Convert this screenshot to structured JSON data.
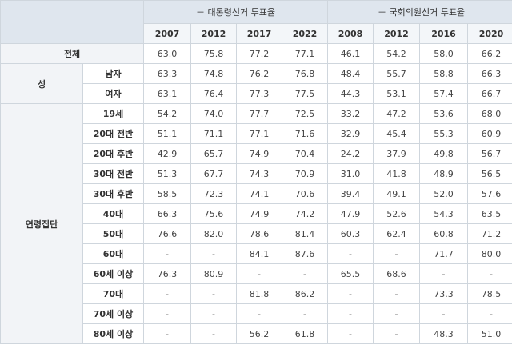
{
  "groups": [
    {
      "label": "－ 대통령선거 투표율"
    },
    {
      "label": "－ 국회의원선거 투표율"
    }
  ],
  "years": [
    "2007",
    "2012",
    "2017",
    "2022",
    "2008",
    "2012",
    "2016",
    "2020"
  ],
  "rows": [
    {
      "cat": "전체",
      "sub": "",
      "values": [
        "63.0",
        "75.8",
        "77.2",
        "77.1",
        "46.1",
        "54.2",
        "58.0",
        "66.2"
      ]
    },
    {
      "cat": "성",
      "sub": "남자",
      "values": [
        "63.3",
        "74.8",
        "76.2",
        "76.8",
        "48.4",
        "55.7",
        "58.8",
        "66.3"
      ]
    },
    {
      "cat": "",
      "sub": "여자",
      "values": [
        "63.1",
        "76.4",
        "77.3",
        "77.5",
        "44.3",
        "53.1",
        "57.4",
        "66.7"
      ]
    },
    {
      "cat": "연령집단",
      "sub": "19세",
      "values": [
        "54.2",
        "74.0",
        "77.7",
        "72.5",
        "33.2",
        "47.2",
        "53.6",
        "68.0"
      ]
    },
    {
      "cat": "",
      "sub": "20대 전반",
      "values": [
        "51.1",
        "71.1",
        "77.1",
        "71.6",
        "32.9",
        "45.4",
        "55.3",
        "60.9"
      ]
    },
    {
      "cat": "",
      "sub": "20대 후반",
      "values": [
        "42.9",
        "65.7",
        "74.9",
        "70.4",
        "24.2",
        "37.9",
        "49.8",
        "56.7"
      ]
    },
    {
      "cat": "",
      "sub": "30대 전반",
      "values": [
        "51.3",
        "67.7",
        "74.3",
        "70.9",
        "31.0",
        "41.8",
        "48.9",
        "56.5"
      ]
    },
    {
      "cat": "",
      "sub": "30대 후반",
      "values": [
        "58.5",
        "72.3",
        "74.1",
        "70.6",
        "39.4",
        "49.1",
        "52.0",
        "57.6"
      ]
    },
    {
      "cat": "",
      "sub": "40대",
      "values": [
        "66.3",
        "75.6",
        "74.9",
        "74.2",
        "47.9",
        "52.6",
        "54.3",
        "63.5"
      ]
    },
    {
      "cat": "",
      "sub": "50대",
      "values": [
        "76.6",
        "82.0",
        "78.6",
        "81.4",
        "60.3",
        "62.4",
        "60.8",
        "71.2"
      ]
    },
    {
      "cat": "",
      "sub": "60대",
      "values": [
        "-",
        "-",
        "84.1",
        "87.6",
        "-",
        "-",
        "71.7",
        "80.0"
      ]
    },
    {
      "cat": "",
      "sub": "60세 이상",
      "values": [
        "76.3",
        "80.9",
        "-",
        "-",
        "65.5",
        "68.6",
        "-",
        "-"
      ]
    },
    {
      "cat": "",
      "sub": "70대",
      "values": [
        "-",
        "-",
        "81.8",
        "86.2",
        "-",
        "-",
        "73.3",
        "78.5"
      ]
    },
    {
      "cat": "",
      "sub": "70세 이상",
      "values": [
        "-",
        "-",
        "-",
        "-",
        "-",
        "-",
        "-",
        "-"
      ]
    },
    {
      "cat": "",
      "sub": "80세 이상",
      "values": [
        "-",
        "-",
        "56.2",
        "61.8",
        "-",
        "-",
        "48.3",
        "51.0"
      ]
    }
  ]
}
